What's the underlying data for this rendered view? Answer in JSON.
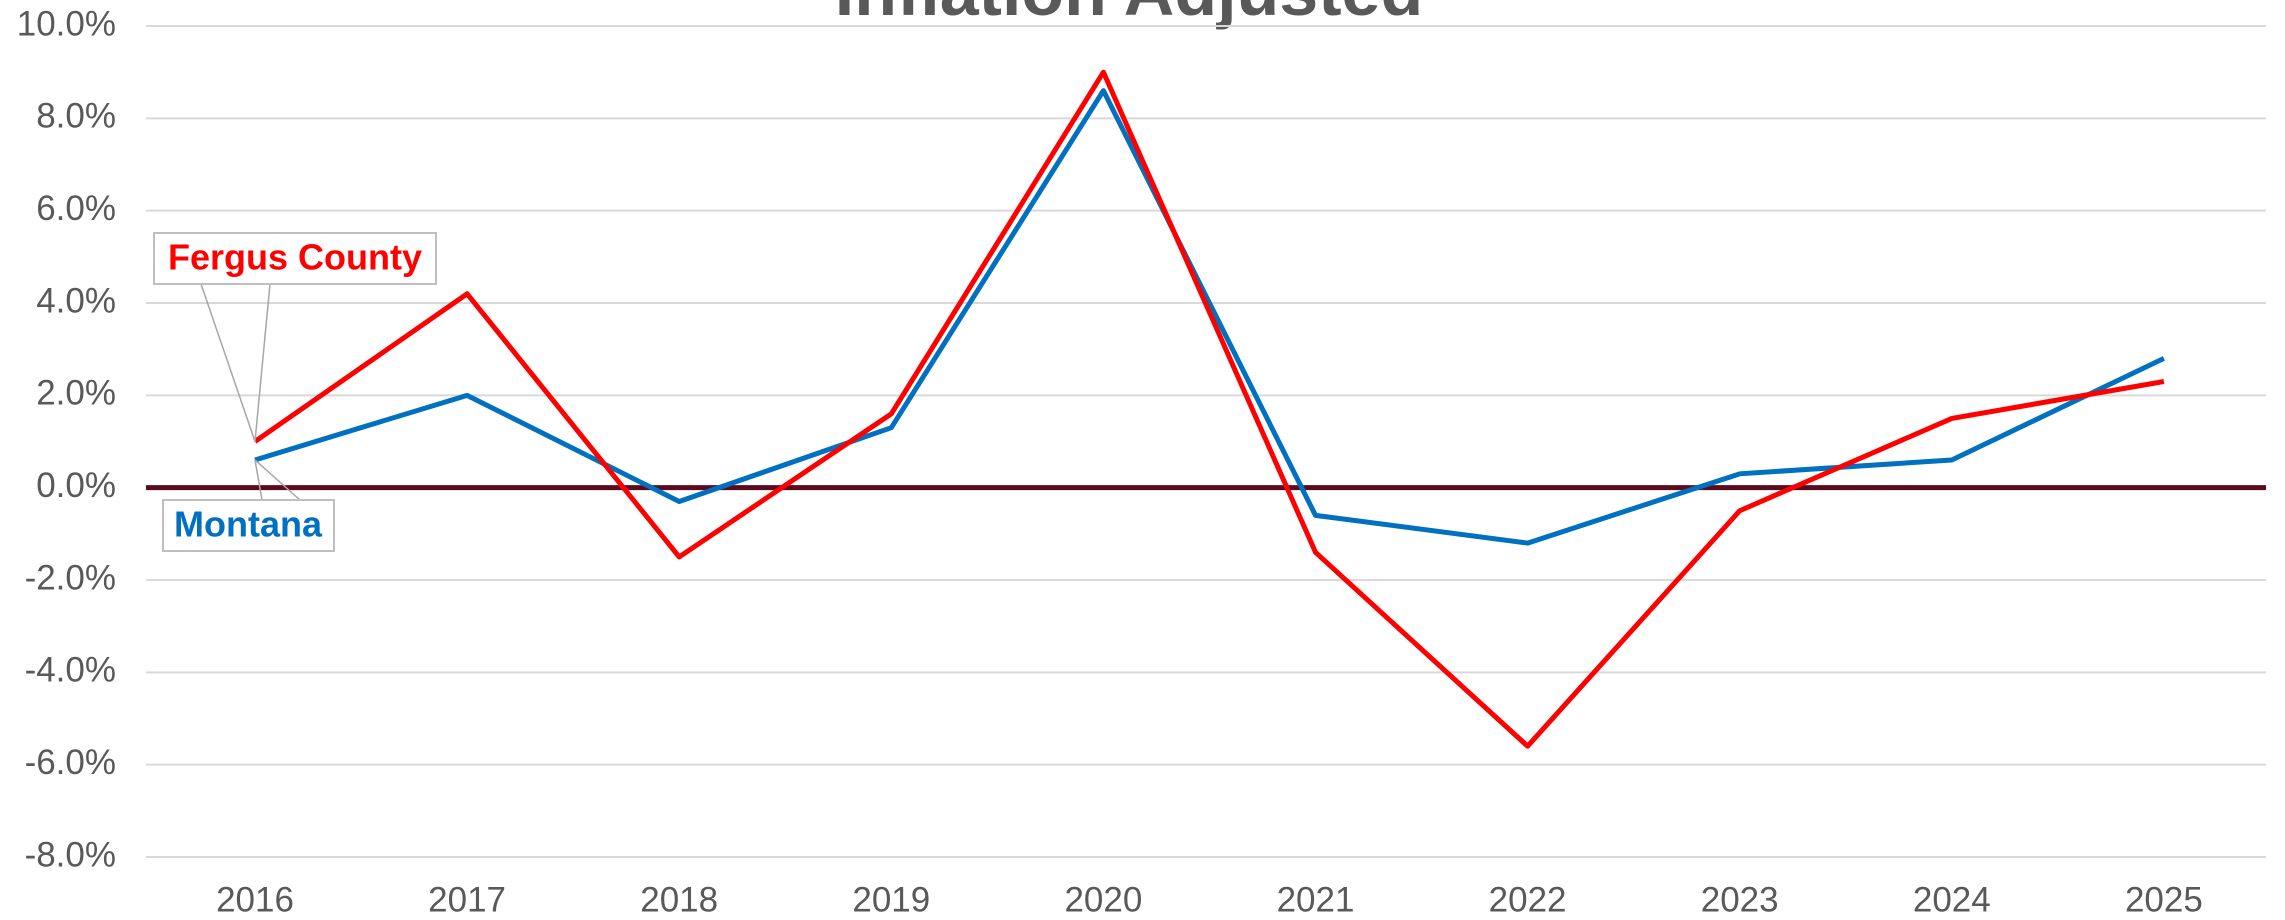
{
  "chart_data": {
    "type": "line",
    "title": "Inflation Adjusted",
    "categories": [
      "2016",
      "2017",
      "2018",
      "2019",
      "2020",
      "2021",
      "2022",
      "2023",
      "2024",
      "2025"
    ],
    "series": [
      {
        "name": "Montana",
        "color": "#0070c0",
        "values": [
          0.6,
          2.0,
          -0.3,
          1.3,
          8.6,
          -0.6,
          -1.2,
          0.3,
          0.6,
          2.8
        ]
      },
      {
        "name": "Fergus County",
        "color": "#ff0000",
        "values": [
          1.0,
          4.2,
          -1.5,
          1.6,
          9.0,
          -1.4,
          -5.6,
          -0.5,
          1.5,
          2.3
        ]
      }
    ],
    "ylim": [
      -8,
      10
    ],
    "yticks": [
      {
        "value": -8,
        "label": "-8.0%"
      },
      {
        "value": -6,
        "label": "-6.0%"
      },
      {
        "value": -4,
        "label": "-4.0%"
      },
      {
        "value": -2,
        "label": "-2.0%"
      },
      {
        "value": 0,
        "label": "0.0%"
      },
      {
        "value": 2,
        "label": "2.0%"
      },
      {
        "value": 4,
        "label": "4.0%"
      },
      {
        "value": 6,
        "label": "6.0%"
      },
      {
        "value": 8,
        "label": "8.0%"
      },
      {
        "value": 10,
        "label": "10.0%"
      }
    ],
    "grid": true
  }
}
